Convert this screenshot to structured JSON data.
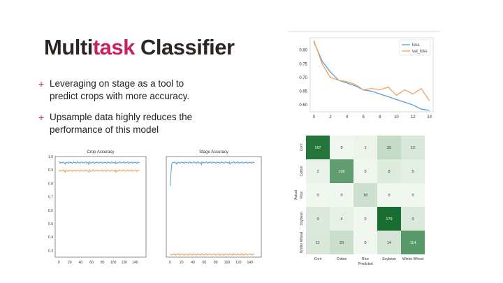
{
  "slide": {
    "title_part1": "Multi",
    "title_part2": "task",
    "title_part3": " Classifier",
    "accent_color": "#c4245f",
    "bullets": [
      {
        "icon": "plus-icon",
        "text_line1": "Leveraging on stage as a tool to",
        "text_line2": "predict crops with more accuracy."
      },
      {
        "icon": "plus-icon",
        "text_line1": "Upsample data highly reduces the",
        "text_line2": "performance of this model"
      }
    ]
  },
  "chart_data": [
    {
      "type": "line",
      "title": "",
      "x": [
        0,
        1,
        2,
        3,
        4,
        5,
        6,
        7,
        8,
        9,
        10,
        11,
        12,
        13,
        14
      ],
      "series": [
        {
          "name": "loss",
          "color": "#5b9bd5",
          "values": [
            0.83,
            0.76,
            0.72,
            0.69,
            0.68,
            0.67,
            0.655,
            0.65,
            0.64,
            0.63,
            0.62,
            0.61,
            0.6,
            0.585,
            0.58
          ]
        },
        {
          "name": "val_loss",
          "color": "#f0a35e",
          "values": [
            0.835,
            0.75,
            0.7,
            0.69,
            0.685,
            0.675,
            0.655,
            0.66,
            0.655,
            0.665,
            0.635,
            0.655,
            0.64,
            0.66,
            0.615
          ]
        }
      ],
      "xticks": [
        "0",
        "2",
        "4",
        "6",
        "8",
        "10",
        "12",
        "14"
      ],
      "yticks": [
        "0.60",
        "0.65",
        "0.70",
        "0.75",
        "0.80"
      ],
      "ylim": [
        0.575,
        0.845
      ],
      "legend": "top-right"
    },
    {
      "type": "line",
      "title": "Crop Accuracy",
      "xticks": [
        "0",
        "20",
        "40",
        "60",
        "80",
        "100",
        "120",
        "140"
      ],
      "yticks": [
        "0.3",
        "0.4",
        "0.5",
        "0.6",
        "0.7",
        "0.8",
        "0.9",
        "1.0"
      ],
      "ylim": [
        0.25,
        1.0
      ],
      "xlim": [
        0,
        150
      ],
      "series": [
        {
          "color": "#5b9bd5",
          "level": 0.955
        },
        {
          "color": "#f0a35e",
          "level": 0.895
        }
      ]
    },
    {
      "type": "line",
      "title": "Stage Accuracy",
      "xticks": [
        "0",
        "20",
        "40",
        "60",
        "80",
        "100",
        "120",
        "140"
      ],
      "xlim": [
        0,
        150
      ],
      "ylim": [
        0.25,
        1.0
      ],
      "series": [
        {
          "color": "#5b9bd5",
          "level": 0.955,
          "start": 0.78
        },
        {
          "color": "#f0a35e",
          "level": 0.27
        }
      ]
    },
    {
      "type": "heatmap",
      "title": "",
      "ylabel": "Actual",
      "xlabel": "Predicted",
      "labels": [
        "Corn",
        "Cotton",
        "Rice",
        "Soybean",
        "Winter Wheat"
      ],
      "matrix": [
        [
          167,
          0,
          1,
          25,
          12
        ],
        [
          2,
          106,
          0,
          8,
          5
        ],
        [
          0,
          0,
          18,
          0,
          0
        ],
        [
          9,
          4,
          0,
          179,
          9
        ],
        [
          11,
          20,
          0,
          14,
          114
        ]
      ]
    }
  ]
}
